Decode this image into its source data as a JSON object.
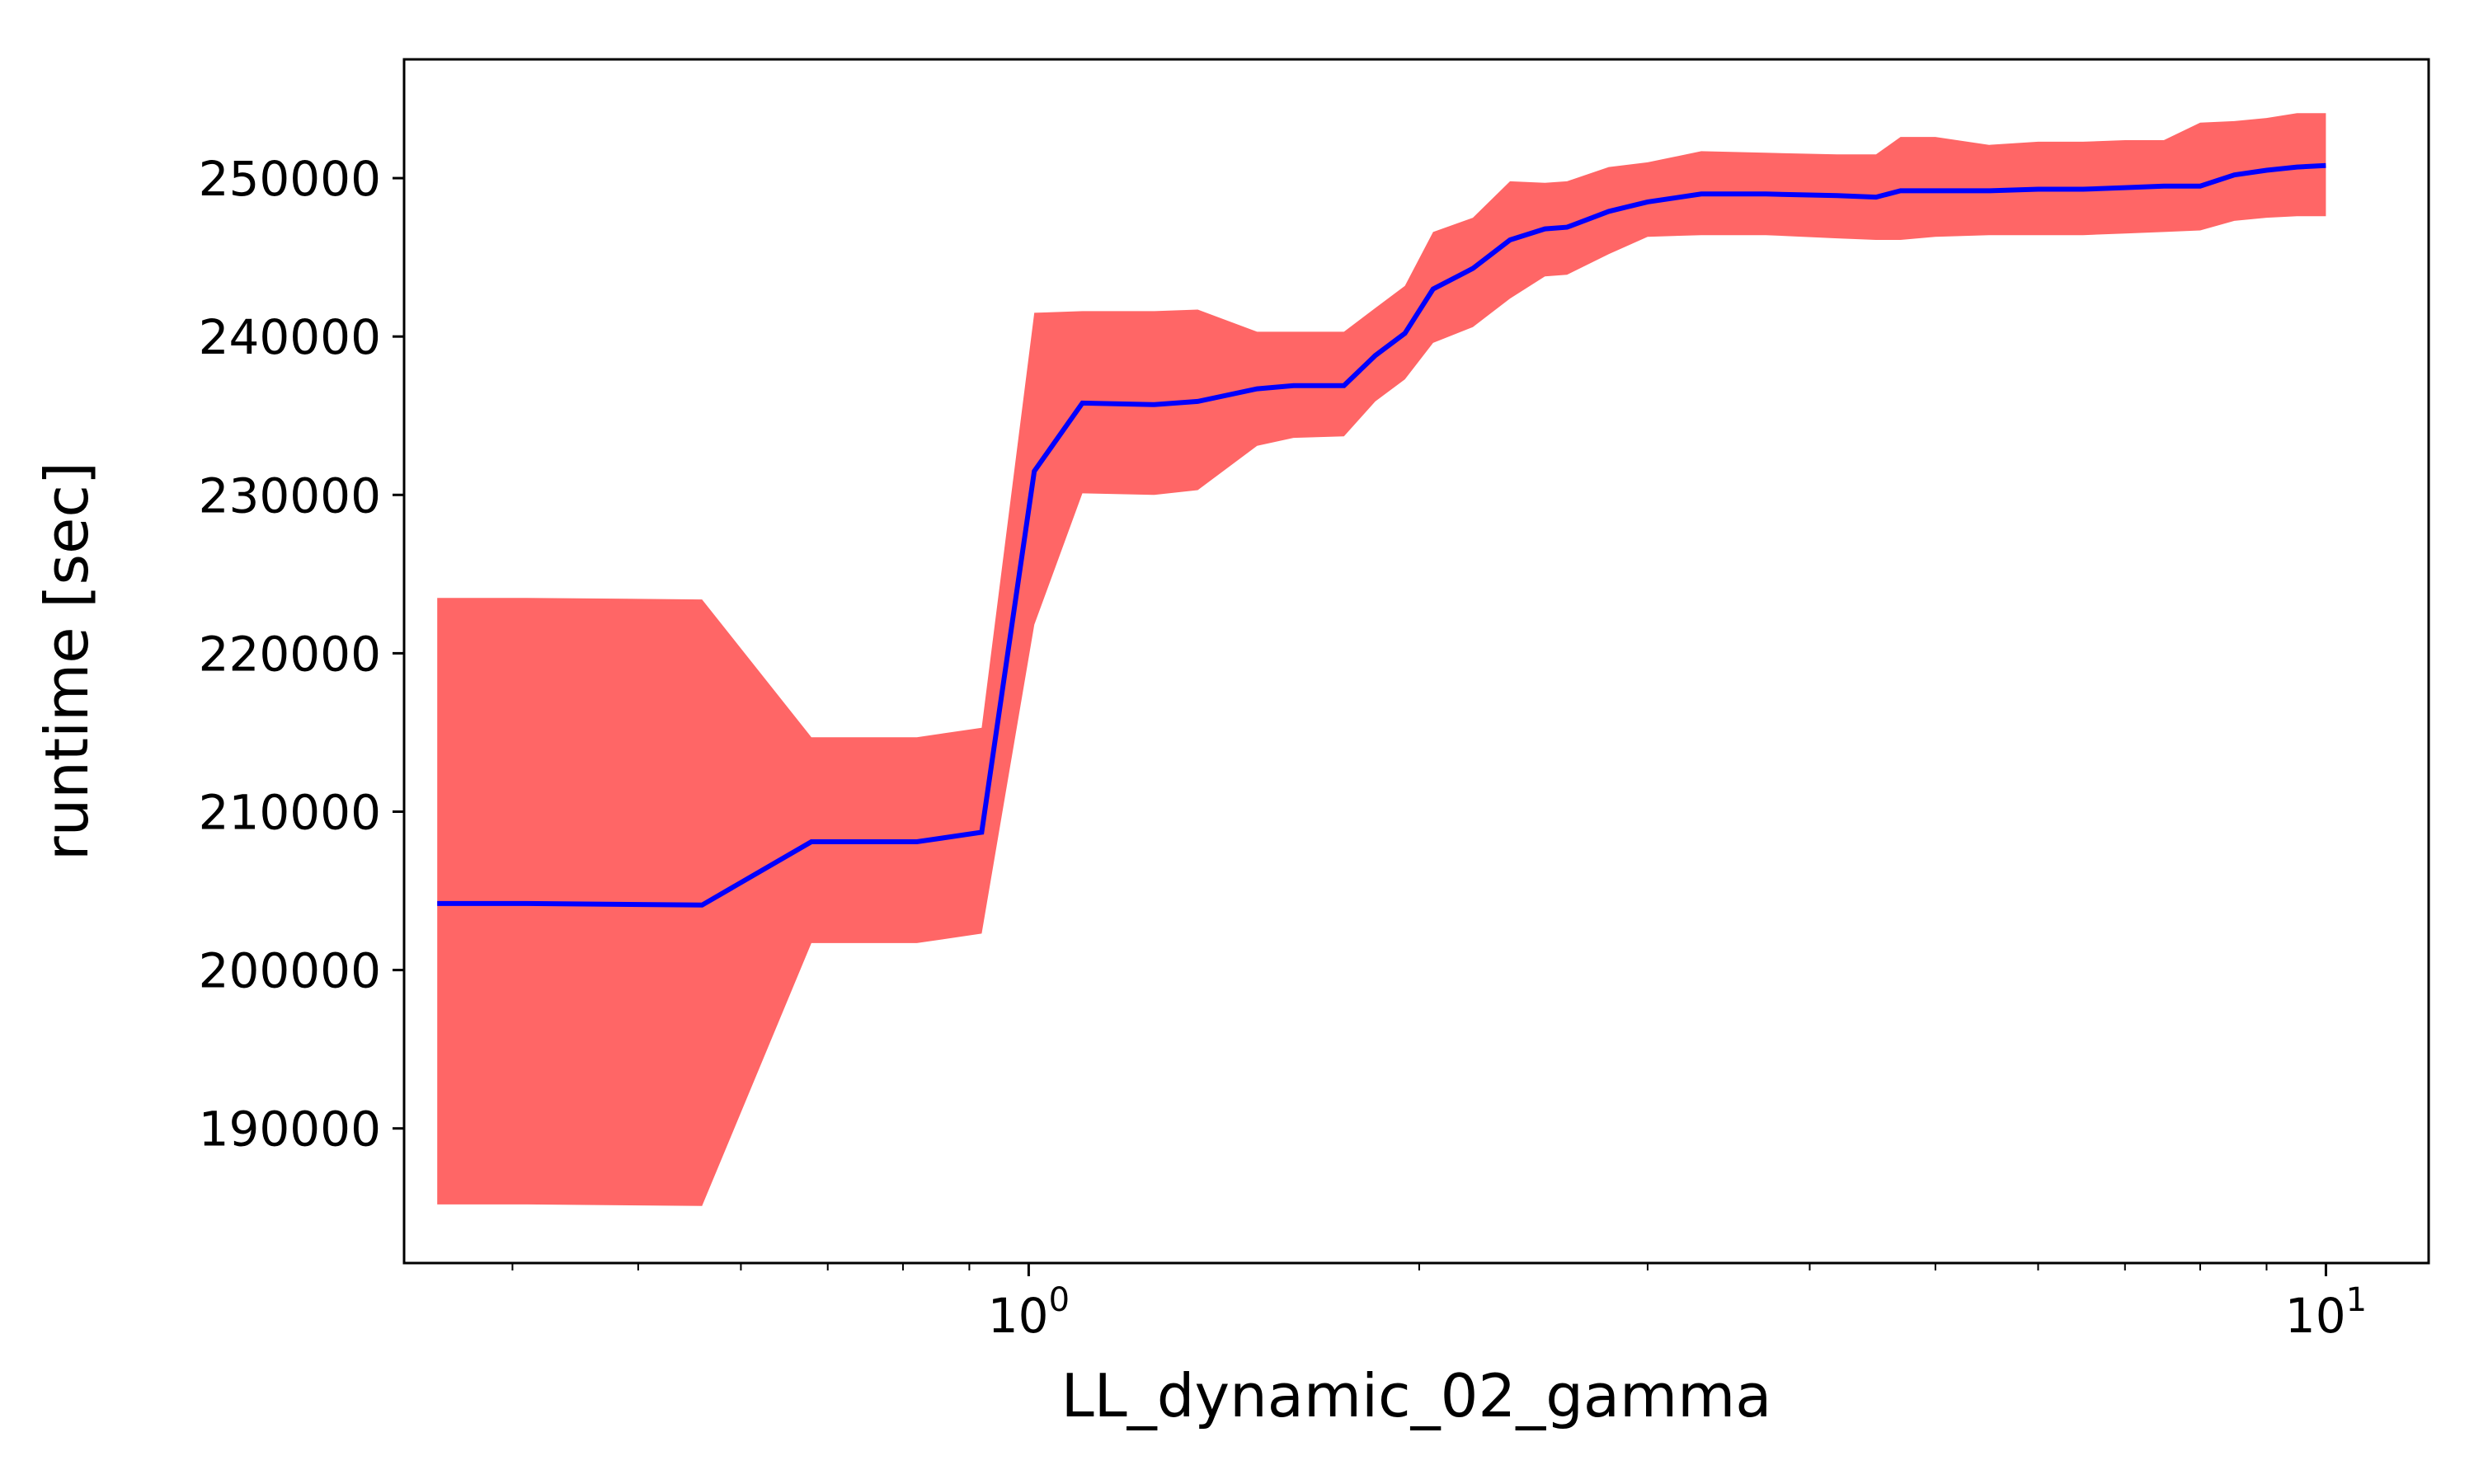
{
  "chart_data": {
    "type": "area",
    "title": "",
    "xlabel": "LL_dynamic_02_gamma",
    "ylabel": "runtime [sec]",
    "x_scale": "log",
    "xlim": [
      0.33,
      12
    ],
    "ylim": [
      181500,
      257500
    ],
    "grid": false,
    "legend": "none",
    "x_ticks": [
      {
        "value": 1,
        "base": "10",
        "exp": "0"
      },
      {
        "value": 10,
        "base": "10",
        "exp": "1"
      }
    ],
    "y_ticks": [
      190000,
      200000,
      210000,
      220000,
      230000,
      240000,
      250000
    ],
    "colors": {
      "mean_line": "#0000ff",
      "band": "#ff6666"
    },
    "series": [
      {
        "x": [
          0.35,
          0.41,
          0.56,
          0.68,
          0.82,
          0.92,
          1.01,
          1.1,
          1.25,
          1.35,
          1.5,
          1.6,
          1.75,
          1.85,
          1.95,
          2.05,
          2.2,
          2.35,
          2.5,
          2.6,
          2.8,
          3.0,
          3.3,
          3.7,
          4.2,
          4.5,
          4.7,
          5.0,
          5.5,
          6.0,
          6.5,
          7.0,
          7.5,
          8.0,
          8.5,
          9.0,
          9.5,
          10.0
        ],
        "y": [
          204200,
          204200,
          204100,
          208100,
          208100,
          208700,
          231500,
          235800,
          235700,
          235900,
          236700,
          236900,
          236900,
          238800,
          240200,
          243000,
          244300,
          246100,
          246800,
          246900,
          247900,
          248500,
          249000,
          249000,
          248900,
          248800,
          249200,
          249200,
          249200,
          249300,
          249300,
          249400,
          249500,
          249500,
          250200,
          250500,
          250700,
          250800
        ],
        "lower": [
          185200,
          185200,
          185100,
          201700,
          201700,
          202300,
          221800,
          230100,
          230000,
          230300,
          233100,
          233600,
          233700,
          235900,
          237300,
          239600,
          240600,
          242400,
          243800,
          243900,
          245200,
          246300,
          246400,
          246400,
          246200,
          246100,
          246100,
          246300,
          246400,
          246400,
          246400,
          246500,
          246600,
          246700,
          247300,
          247500,
          247600,
          247600
        ],
        "upper": [
          223500,
          223500,
          223400,
          214700,
          214700,
          215300,
          241500,
          241600,
          241600,
          241700,
          240300,
          240300,
          240300,
          241800,
          243200,
          246600,
          247500,
          249800,
          249700,
          249800,
          250700,
          251000,
          251700,
          251600,
          251500,
          251500,
          252600,
          252600,
          252100,
          252300,
          252300,
          252400,
          252400,
          253500,
          253600,
          253800,
          254100,
          254100
        ]
      }
    ]
  }
}
